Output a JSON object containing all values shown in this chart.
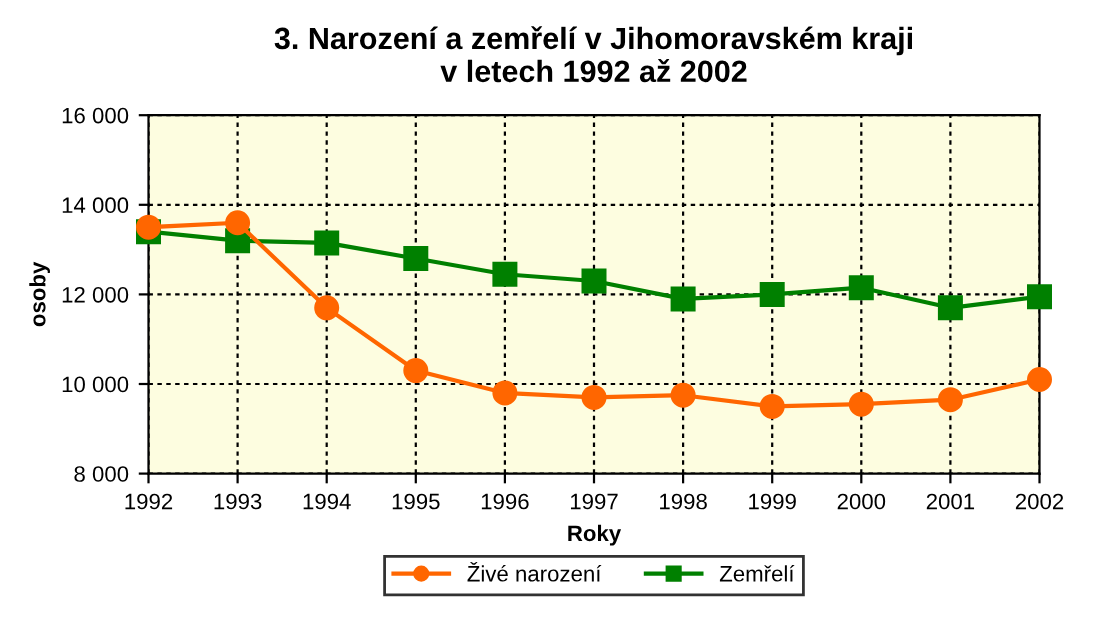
{
  "chart_data": {
    "type": "line",
    "title": "3. Narození a zemřelí v Jihomoravském kraji\nv letech 1992 až 2002",
    "xlabel": "Roky",
    "ylabel": "osoby",
    "x": [
      1992,
      1993,
      1994,
      1995,
      1996,
      1997,
      1998,
      1999,
      2000,
      2001,
      2002
    ],
    "series": [
      {
        "name": "Živé narození",
        "color": "#ff6600",
        "marker": "circle",
        "values": [
          13500,
          13600,
          11700,
          10300,
          9800,
          9700,
          9750,
          9500,
          9550,
          9650,
          10100
        ]
      },
      {
        "name": "Zemřelí",
        "color": "#008000",
        "marker": "square",
        "values": [
          13400,
          13200,
          13150,
          12800,
          12450,
          12300,
          11900,
          12000,
          12150,
          11700,
          11950
        ]
      }
    ],
    "xlim": [
      1992,
      2002
    ],
    "xticks": [
      1992,
      1993,
      1994,
      1995,
      1996,
      1997,
      1998,
      1999,
      2000,
      2001,
      2002
    ],
    "ylim": [
      8000,
      16000
    ],
    "yticks": [
      {
        "value": 8000,
        "label": "8 000"
      },
      {
        "value": 10000,
        "label": "10 000"
      },
      {
        "value": 12000,
        "label": "12 000"
      },
      {
        "value": 14000,
        "label": "14 000"
      },
      {
        "value": 16000,
        "label": "16 000"
      }
    ],
    "grid": true,
    "legend": "bottom",
    "line_style": "solid"
  }
}
